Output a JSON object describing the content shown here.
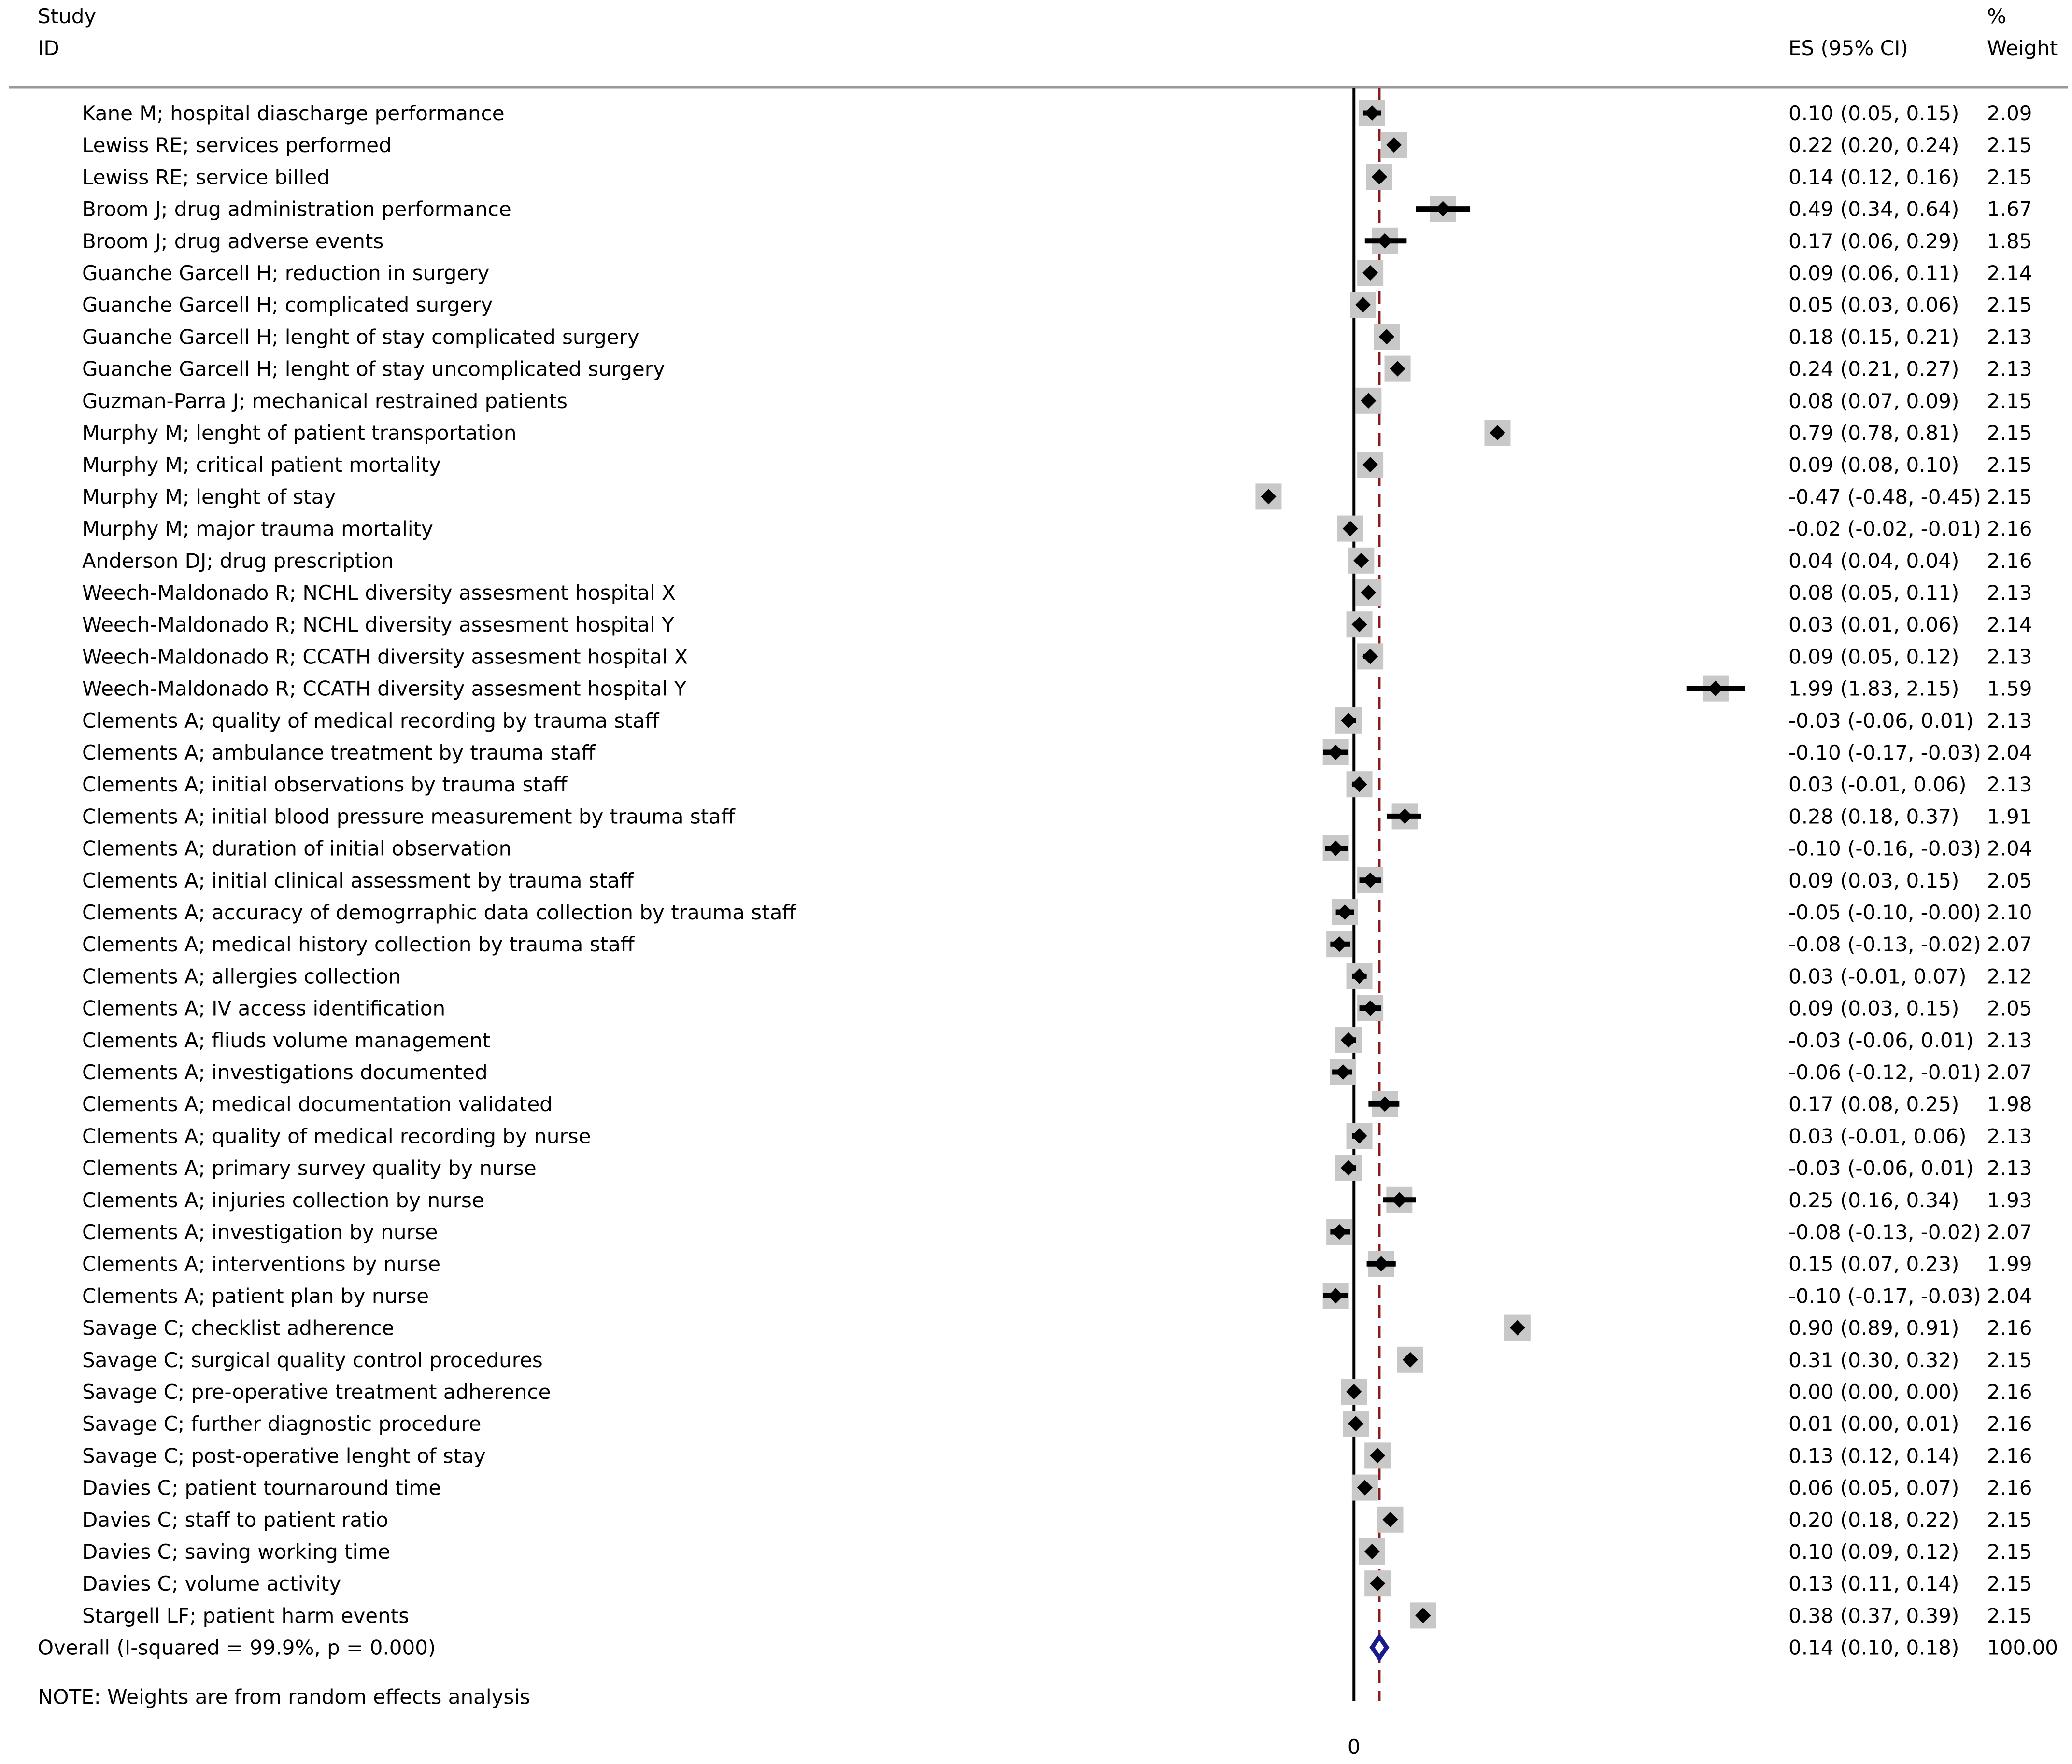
{
  "chart_data": {
    "type": "forest",
    "header": {
      "col1_line1": "Study",
      "col1_line2": "ID",
      "es_label": "ES (95% CI)",
      "weight_line1": "%",
      "weight_line2": "Weight"
    },
    "studies": [
      {
        "label": "Kane M; hospital diascharge performance",
        "es": 0.1,
        "lo": 0.05,
        "hi": 0.15,
        "es_text": "0.10 (0.05, 0.15)",
        "weight": "2.09"
      },
      {
        "label": "Lewiss RE; services performed",
        "es": 0.22,
        "lo": 0.2,
        "hi": 0.24,
        "es_text": "0.22 (0.20, 0.24)",
        "weight": "2.15"
      },
      {
        "label": "Lewiss RE; service billed",
        "es": 0.14,
        "lo": 0.12,
        "hi": 0.16,
        "es_text": "0.14 (0.12, 0.16)",
        "weight": "2.15"
      },
      {
        "label": "Broom J; drug administration performance",
        "es": 0.49,
        "lo": 0.34,
        "hi": 0.64,
        "es_text": "0.49 (0.34, 0.64)",
        "weight": "1.67"
      },
      {
        "label": "Broom J; drug adverse events",
        "es": 0.17,
        "lo": 0.06,
        "hi": 0.29,
        "es_text": "0.17 (0.06, 0.29)",
        "weight": "1.85"
      },
      {
        "label": "Guanche Garcell H; reduction in surgery",
        "es": 0.09,
        "lo": 0.06,
        "hi": 0.11,
        "es_text": "0.09 (0.06, 0.11)",
        "weight": "2.14"
      },
      {
        "label": "Guanche Garcell H; complicated surgery",
        "es": 0.05,
        "lo": 0.03,
        "hi": 0.06,
        "es_text": "0.05 (0.03, 0.06)",
        "weight": "2.15"
      },
      {
        "label": "Guanche Garcell H; lenght of stay complicated surgery",
        "es": 0.18,
        "lo": 0.15,
        "hi": 0.21,
        "es_text": "0.18 (0.15, 0.21)",
        "weight": "2.13"
      },
      {
        "label": "Guanche Garcell H; lenght of stay uncomplicated surgery",
        "es": 0.24,
        "lo": 0.21,
        "hi": 0.27,
        "es_text": "0.24 (0.21, 0.27)",
        "weight": "2.13"
      },
      {
        "label": "Guzman-Parra J; mechanical restrained patients",
        "es": 0.08,
        "lo": 0.07,
        "hi": 0.09,
        "es_text": "0.08 (0.07, 0.09)",
        "weight": "2.15"
      },
      {
        "label": "Murphy M; lenght of patient transportation",
        "es": 0.79,
        "lo": 0.78,
        "hi": 0.81,
        "es_text": "0.79 (0.78, 0.81)",
        "weight": "2.15"
      },
      {
        "label": "Murphy M; critical patient mortality",
        "es": 0.09,
        "lo": 0.08,
        "hi": 0.1,
        "es_text": "0.09 (0.08, 0.10)",
        "weight": "2.15"
      },
      {
        "label": "Murphy M; lenght of stay",
        "es": -0.47,
        "lo": -0.48,
        "hi": -0.45,
        "es_text": "-0.47 (-0.48, -0.45)",
        "weight": "2.15"
      },
      {
        "label": "Murphy M; major trauma mortality",
        "es": -0.02,
        "lo": -0.02,
        "hi": -0.01,
        "es_text": "-0.02 (-0.02, -0.01)",
        "weight": "2.16"
      },
      {
        "label": "Anderson DJ; drug prescription",
        "es": 0.04,
        "lo": 0.04,
        "hi": 0.04,
        "es_text": "0.04 (0.04, 0.04)",
        "weight": "2.16"
      },
      {
        "label": "Weech-Maldonado R; NCHL diversity assesment hospital X",
        "es": 0.08,
        "lo": 0.05,
        "hi": 0.11,
        "es_text": "0.08 (0.05, 0.11)",
        "weight": "2.13"
      },
      {
        "label": "Weech-Maldonado R; NCHL diversity assesment hospital Y",
        "es": 0.03,
        "lo": 0.01,
        "hi": 0.06,
        "es_text": "0.03 (0.01, 0.06)",
        "weight": "2.14"
      },
      {
        "label": "Weech-Maldonado R; CCATH diversity assesment hospital X",
        "es": 0.09,
        "lo": 0.05,
        "hi": 0.12,
        "es_text": "0.09 (0.05, 0.12)",
        "weight": "2.13"
      },
      {
        "label": "Weech-Maldonado R; CCATH diversity assesment hospital Y",
        "es": 1.99,
        "lo": 1.83,
        "hi": 2.15,
        "es_text": "1.99 (1.83, 2.15)",
        "weight": "1.59"
      },
      {
        "label": "Clements A; quality of medical recording by trauma staff",
        "es": -0.03,
        "lo": -0.06,
        "hi": 0.01,
        "es_text": "-0.03 (-0.06, 0.01)",
        "weight": "2.13"
      },
      {
        "label": "Clements A; ambulance treatment by trauma staff",
        "es": -0.1,
        "lo": -0.17,
        "hi": -0.03,
        "es_text": "-0.10 (-0.17, -0.03)",
        "weight": "2.04"
      },
      {
        "label": "Clements A; initial observations by trauma staff",
        "es": 0.03,
        "lo": -0.01,
        "hi": 0.06,
        "es_text": "0.03 (-0.01, 0.06)",
        "weight": "2.13"
      },
      {
        "label": "Clements A; initial blood pressure measurement by trauma staff",
        "es": 0.28,
        "lo": 0.18,
        "hi": 0.37,
        "es_text": "0.28 (0.18, 0.37)",
        "weight": "1.91"
      },
      {
        "label": "Clements A; duration of initial observation",
        "es": -0.1,
        "lo": -0.16,
        "hi": -0.03,
        "es_text": "-0.10 (-0.16, -0.03)",
        "weight": "2.04"
      },
      {
        "label": "Clements A; initial clinical assessment by trauma staff",
        "es": 0.09,
        "lo": 0.03,
        "hi": 0.15,
        "es_text": "0.09 (0.03, 0.15)",
        "weight": "2.05"
      },
      {
        "label": "Clements A; accuracy of demogrraphic data collection by trauma staff",
        "es": -0.05,
        "lo": -0.1,
        "hi": -0.0,
        "es_text": "-0.05 (-0.10, -0.00)",
        "weight": "2.10"
      },
      {
        "label": "Clements A; medical history collection by trauma staff",
        "es": -0.08,
        "lo": -0.13,
        "hi": -0.02,
        "es_text": "-0.08 (-0.13, -0.02)",
        "weight": "2.07"
      },
      {
        "label": "Clements A; allergies collection",
        "es": 0.03,
        "lo": -0.01,
        "hi": 0.07,
        "es_text": "0.03 (-0.01, 0.07)",
        "weight": "2.12"
      },
      {
        "label": "Clements A; IV access identification",
        "es": 0.09,
        "lo": 0.03,
        "hi": 0.15,
        "es_text": "0.09 (0.03, 0.15)",
        "weight": "2.05"
      },
      {
        "label": "Clements A; fliuds volume management",
        "es": -0.03,
        "lo": -0.06,
        "hi": 0.01,
        "es_text": "-0.03 (-0.06, 0.01)",
        "weight": "2.13"
      },
      {
        "label": "Clements A; investigations documented",
        "es": -0.06,
        "lo": -0.12,
        "hi": -0.01,
        "es_text": "-0.06 (-0.12, -0.01)",
        "weight": "2.07"
      },
      {
        "label": "Clements A; medical documentation validated",
        "es": 0.17,
        "lo": 0.08,
        "hi": 0.25,
        "es_text": "0.17 (0.08, 0.25)",
        "weight": "1.98"
      },
      {
        "label": "Clements A; quality of medical recording by nurse",
        "es": 0.03,
        "lo": -0.01,
        "hi": 0.06,
        "es_text": "0.03 (-0.01, 0.06)",
        "weight": "2.13"
      },
      {
        "label": "Clements A; primary survey quality by nurse",
        "es": -0.03,
        "lo": -0.06,
        "hi": 0.01,
        "es_text": "-0.03 (-0.06, 0.01)",
        "weight": "2.13"
      },
      {
        "label": "Clements A; injuries collection by nurse",
        "es": 0.25,
        "lo": 0.16,
        "hi": 0.34,
        "es_text": "0.25 (0.16, 0.34)",
        "weight": "1.93"
      },
      {
        "label": "Clements A; investigation by nurse",
        "es": -0.08,
        "lo": -0.13,
        "hi": -0.02,
        "es_text": "-0.08 (-0.13, -0.02)",
        "weight": "2.07"
      },
      {
        "label": "Clements A; interventions by nurse",
        "es": 0.15,
        "lo": 0.07,
        "hi": 0.23,
        "es_text": "0.15 (0.07, 0.23)",
        "weight": "1.99"
      },
      {
        "label": "Clements A; patient plan by nurse",
        "es": -0.1,
        "lo": -0.17,
        "hi": -0.03,
        "es_text": "-0.10 (-0.17, -0.03)",
        "weight": "2.04"
      },
      {
        "label": "Savage C; checklist adherence",
        "es": 0.9,
        "lo": 0.89,
        "hi": 0.91,
        "es_text": "0.90 (0.89, 0.91)",
        "weight": "2.16"
      },
      {
        "label": "Savage C; surgical quality control procedures",
        "es": 0.31,
        "lo": 0.3,
        "hi": 0.32,
        "es_text": "0.31 (0.30, 0.32)",
        "weight": "2.15"
      },
      {
        "label": "Savage C; pre-operative treatment adherence",
        "es": 0.0,
        "lo": 0.0,
        "hi": 0.0,
        "es_text": "0.00 (0.00, 0.00)",
        "weight": "2.16"
      },
      {
        "label": "Savage C; further diagnostic procedure",
        "es": 0.01,
        "lo": 0.0,
        "hi": 0.01,
        "es_text": "0.01 (0.00, 0.01)",
        "weight": "2.16"
      },
      {
        "label": "Savage C; post-operative lenght of stay",
        "es": 0.13,
        "lo": 0.12,
        "hi": 0.14,
        "es_text": "0.13 (0.12, 0.14)",
        "weight": "2.16"
      },
      {
        "label": "Davies C; patient tournaround time",
        "es": 0.06,
        "lo": 0.05,
        "hi": 0.07,
        "es_text": "0.06 (0.05, 0.07)",
        "weight": "2.16"
      },
      {
        "label": "Davies C; staff to patient ratio",
        "es": 0.2,
        "lo": 0.18,
        "hi": 0.22,
        "es_text": "0.20 (0.18, 0.22)",
        "weight": "2.15"
      },
      {
        "label": "Davies C; saving working time",
        "es": 0.1,
        "lo": 0.09,
        "hi": 0.12,
        "es_text": "0.10 (0.09, 0.12)",
        "weight": "2.15"
      },
      {
        "label": "Davies C; volume activity",
        "es": 0.13,
        "lo": 0.11,
        "hi": 0.14,
        "es_text": "0.13 (0.11, 0.14)",
        "weight": "2.15"
      },
      {
        "label": "Stargell LF; patient harm events",
        "es": 0.38,
        "lo": 0.37,
        "hi": 0.39,
        "es_text": "0.38 (0.37, 0.39)",
        "weight": "2.15"
      }
    ],
    "overall": {
      "label": "Overall  (I-squared = 99.9%, p = 0.000)",
      "es": 0.14,
      "lo": 0.1,
      "hi": 0.18,
      "es_text": "0.14 (0.10, 0.18)",
      "weight": "100.00"
    },
    "note": "NOTE: Weights are from random effects analysis",
    "x_tick_label": "0",
    "null_value": 0,
    "xlim": [
      -0.62,
      2.24
    ],
    "colors": {
      "box": "#c8c8c8",
      "point": "#000000",
      "ci": "#000000",
      "null_line": "#000000",
      "overall_line": "#8b1a1a",
      "overall_diamond": "#1a1a8c",
      "header_rule": "#999999"
    }
  }
}
